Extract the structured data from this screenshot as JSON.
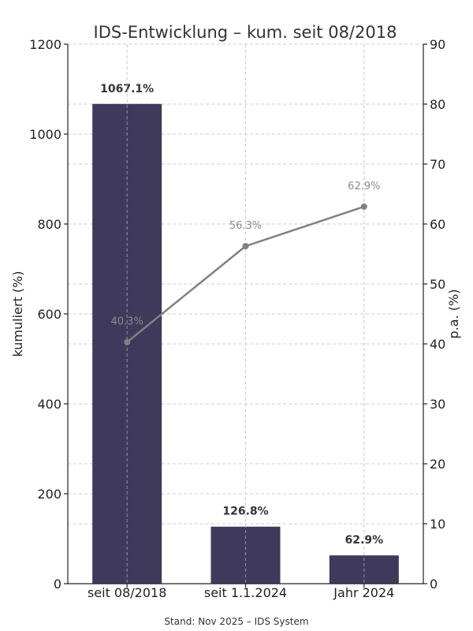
{
  "chart_data": {
    "type": "bar",
    "title": "IDS-Entwicklung – kum. seit 08/2018",
    "categories": [
      "seit 08/2018",
      "seit 1.1.2024",
      "Jahr 2024"
    ],
    "ylabel_left": "kumuliert (%)",
    "ylabel_right": "p.a. (%)",
    "ylim_left": [
      0,
      1200
    ],
    "yticks_left": [
      0,
      200,
      400,
      600,
      800,
      1000,
      1200
    ],
    "ylim_right": [
      0,
      90
    ],
    "yticks_right": [
      0,
      10,
      20,
      30,
      40,
      50,
      60,
      70,
      80,
      90
    ],
    "grid": true,
    "series": [
      {
        "type": "bar",
        "axis": "left",
        "values": [
          1067.1,
          126.8,
          62.9
        ],
        "labels": [
          "1067.1%",
          "126.8%",
          "62.9%"
        ],
        "color": "#3f3a5c"
      },
      {
        "type": "line",
        "axis": "right",
        "values": [
          40.3,
          56.3,
          62.9
        ],
        "labels": [
          "40.3%",
          "56.3%",
          "62.9%"
        ],
        "color": "#808080"
      }
    ],
    "footnote": "Stand: Nov 2025 – IDS System"
  }
}
